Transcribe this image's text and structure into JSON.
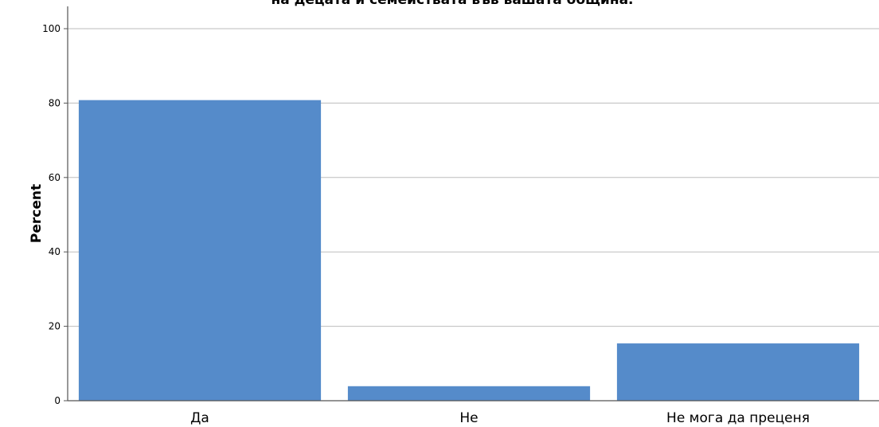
{
  "chart_data": {
    "type": "bar",
    "title": "на децата и семействата във вашата община.",
    "xlabel": "",
    "ylabel": "Percent",
    "categories": [
      "Да",
      "Не",
      "Не мога да преценя"
    ],
    "values": [
      80.8,
      3.9,
      15.4
    ],
    "ylim": [
      0,
      100
    ],
    "yticks": [
      0,
      20,
      40,
      60,
      80,
      100
    ],
    "grid": true,
    "bar_color": "#558BCA",
    "grid_color": "#BDBDBD"
  }
}
